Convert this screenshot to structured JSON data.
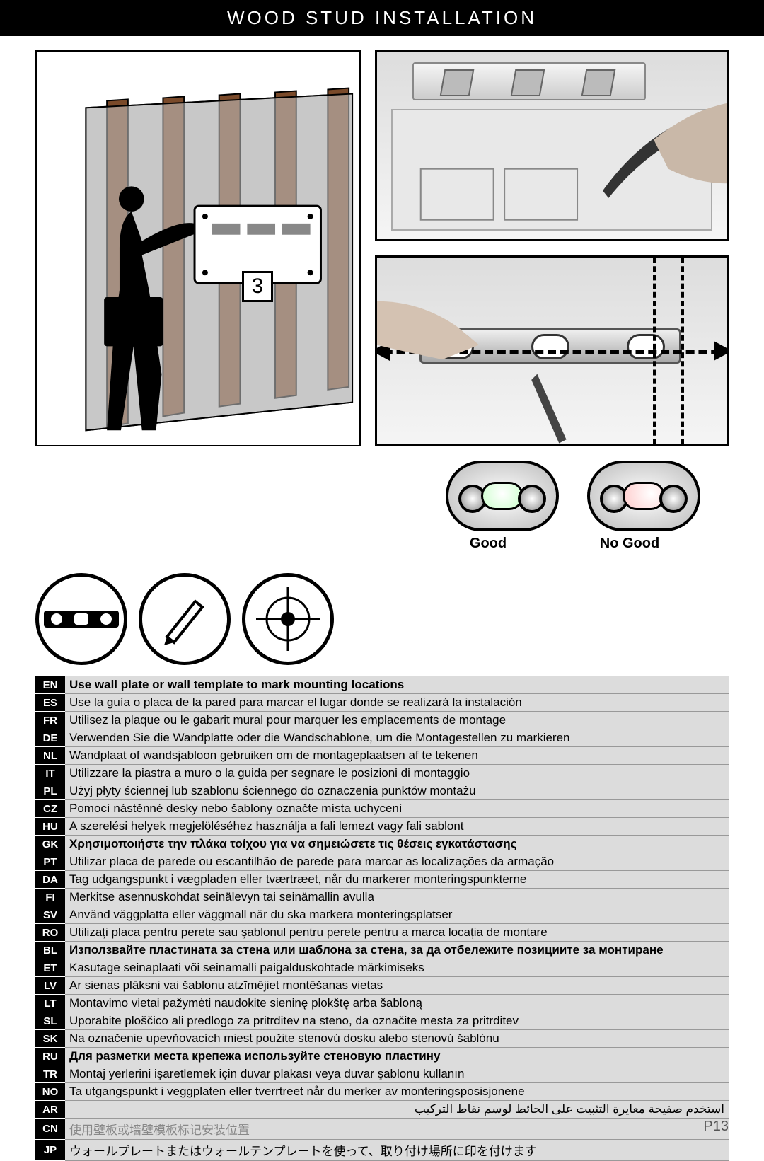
{
  "header": {
    "title": "WOOD STUD INSTALLATION"
  },
  "step": {
    "number": "3"
  },
  "level_check": {
    "good": "Good",
    "no_good": "No Good"
  },
  "page_number": "P13",
  "instructions": [
    {
      "code": "EN",
      "text": "Use wall plate or wall template to mark mounting locations",
      "bold": true
    },
    {
      "code": "ES",
      "text": "Use la guía o placa de la pared para marcar el lugar donde se realizará la instalación"
    },
    {
      "code": "FR",
      "text": "Utilisez la plaque ou le gabarit mural pour marquer les emplacements de montage"
    },
    {
      "code": "DE",
      "text": "Verwenden Sie die Wandplatte oder die Wandschablone, um die Montagestellen zu markieren"
    },
    {
      "code": "NL",
      "text": "Wandplaat of wandsjabloon gebruiken om de montageplaatsen af te tekenen"
    },
    {
      "code": "IT",
      "text": "Utilizzare la piastra a muro o la guida per segnare le posizioni di montaggio"
    },
    {
      "code": "PL",
      "text": "Użyj płyty ściennej lub szablonu ściennego do oznaczenia punktów montażu"
    },
    {
      "code": "CZ",
      "text": "Pomocí nástěnné desky nebo šablony označte místa uchycení"
    },
    {
      "code": "HU",
      "text": "A szerelési helyek megjelöléséhez használja a fali lemezt vagy fali sablont"
    },
    {
      "code": "GK",
      "text": "Χρησιμοποιήστε την πλάκα τοίχου για να σημειώσετε τις θέσεις εγκατάστασης",
      "bold": true
    },
    {
      "code": "PT",
      "text": "Utilizar placa de parede ou escantilhão de parede para marcar as localizações da armação"
    },
    {
      "code": "DA",
      "text": "Tag udgangspunkt i vægpladen eller tværtræet, når du markerer monteringspunkterne"
    },
    {
      "code": "FI",
      "text": "Merkitse asennuskohdat seinälevyn tai seinämallin avulla"
    },
    {
      "code": "SV",
      "text": "Använd väggplatta eller väggmall när du ska markera monteringsplatser"
    },
    {
      "code": "RO",
      "text": "Utilizați placa pentru perete sau șablonul pentru perete pentru a marca locația de montare"
    },
    {
      "code": "BL",
      "text": "Използвайте пластината за стена или шаблона за стена, за да отбележите позициите за монтиране",
      "bold": true
    },
    {
      "code": "ET",
      "text": "Kasutage seinaplaati või seinamalli paigalduskohtade märkimiseks"
    },
    {
      "code": "LV",
      "text": "Ar sienas plāksni vai šablonu atzīmējiet montēšanas vietas"
    },
    {
      "code": "LT",
      "text": "Montavimo vietai pažymėti naudokite sieninę plokštę arba šabloną"
    },
    {
      "code": "SL",
      "text": "Uporabite ploščico ali predlogo za pritrditev na steno, da označite mesta za pritrditev"
    },
    {
      "code": "SK",
      "text": "Na označenie upevňovacích miest použite stenovú dosku alebo stenovú šablónu"
    },
    {
      "code": "RU",
      "text": "Для разметки места крепежа используйте стеновую пластину",
      "bold": true
    },
    {
      "code": "TR",
      "text": "Montaj yerlerini işaretlemek için duvar plakası veya duvar şablonu kullanın"
    },
    {
      "code": "NO",
      "text": "Ta utgangspunkt i veggplaten eller tverrtreet når du merker av monteringsposisjonene"
    },
    {
      "code": "AR",
      "text": "استخدم صفيحة معايرة التثبيت على الحائط لوسم نقاط التركيب",
      "rtl": true
    },
    {
      "code": "CN",
      "text": "使用壁板或墙壁模板标记安装位置",
      "cn": true
    },
    {
      "code": "JP",
      "text": "ウォールプレートまたはウォールテンプレートを使って、取り付け場所に印を付けます"
    }
  ],
  "colors": {
    "header_bg": "#000000",
    "row_bg": "#dcdcdc",
    "code_bg": "#000000"
  }
}
